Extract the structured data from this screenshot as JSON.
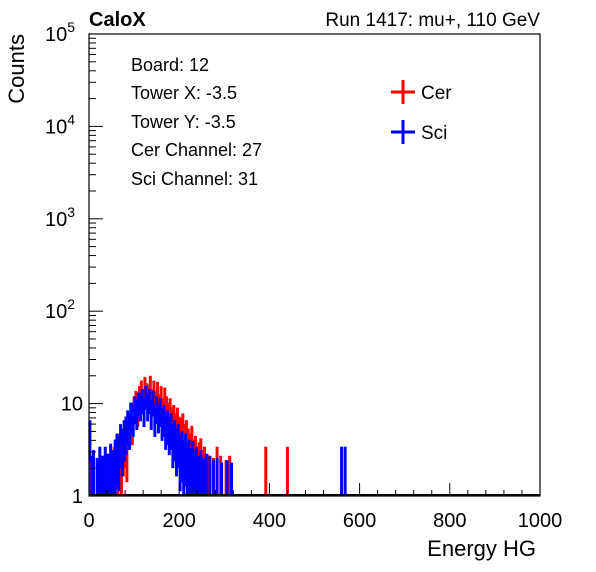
{
  "chart_data": {
    "type": "histogram",
    "header_left": "CaloX",
    "header_right": "Run 1417: mu+, 110 GeV",
    "xlabel": "Energy HG",
    "ylabel": "Counts",
    "xlim": [
      0,
      1000
    ],
    "ylim": [
      1,
      100000
    ],
    "yscale": "log",
    "grid": false,
    "x_ticks": [
      0,
      200,
      400,
      600,
      800,
      1000
    ],
    "x_tick_labels": [
      "0",
      "200",
      "400",
      "600",
      "800",
      "1000"
    ],
    "y_tick_labels": [
      {
        "value": 1,
        "base": "1",
        "exp": ""
      },
      {
        "value": 10,
        "base": "10",
        "exp": ""
      },
      {
        "value": 100,
        "base": "10",
        "exp": "2"
      },
      {
        "value": 1000,
        "base": "10",
        "exp": "3"
      },
      {
        "value": 10000,
        "base": "10",
        "exp": "4"
      },
      {
        "value": 100000,
        "base": "10",
        "exp": "5"
      }
    ],
    "info_box": [
      "Board: 12",
      "Tower X: -3.5",
      "Tower Y: -3.5",
      "Cer Channel: 27",
      "Sci Channel: 31"
    ],
    "legend_position": "top-right",
    "series": [
      {
        "name": "Cer",
        "color": "#ff0000",
        "bin_width": 2,
        "points": [
          [
            4,
            1.5
          ],
          [
            10,
            1.3
          ],
          [
            28,
            1.5
          ],
          [
            40,
            1.6
          ],
          [
            48,
            1.4
          ],
          [
            56,
            2.0
          ],
          [
            60,
            2.5
          ],
          [
            64,
            1.8
          ],
          [
            68,
            3.0
          ],
          [
            72,
            2.4
          ],
          [
            76,
            3.5
          ],
          [
            80,
            4.0
          ],
          [
            84,
            3.2
          ],
          [
            88,
            5.5
          ],
          [
            92,
            7.5
          ],
          [
            96,
            6.0
          ],
          [
            100,
            9.0
          ],
          [
            104,
            10.5
          ],
          [
            108,
            8.5
          ],
          [
            112,
            12.0
          ],
          [
            116,
            14.0
          ],
          [
            120,
            11.0
          ],
          [
            124,
            15.5
          ],
          [
            128,
            13.0
          ],
          [
            132,
            12.5
          ],
          [
            136,
            16.0
          ],
          [
            140,
            11.0
          ],
          [
            144,
            14.0
          ],
          [
            148,
            10.5
          ],
          [
            152,
            13.5
          ],
          [
            156,
            9.5
          ],
          [
            160,
            12.0
          ],
          [
            164,
            8.5
          ],
          [
            168,
            11.5
          ],
          [
            172,
            9.0
          ],
          [
            176,
            7.5
          ],
          [
            180,
            8.5
          ],
          [
            184,
            6.5
          ],
          [
            188,
            7.0
          ],
          [
            192,
            5.5
          ],
          [
            196,
            6.5
          ],
          [
            200,
            5.0
          ],
          [
            204,
            4.8
          ],
          [
            208,
            5.5
          ],
          [
            212,
            4.0
          ],
          [
            216,
            4.5
          ],
          [
            220,
            3.5
          ],
          [
            224,
            3.0
          ],
          [
            228,
            3.8
          ],
          [
            232,
            2.5
          ],
          [
            236,
            2.8
          ],
          [
            240,
            2.0
          ],
          [
            244,
            2.3
          ],
          [
            248,
            2.6
          ],
          [
            252,
            1.8
          ],
          [
            256,
            2.0
          ],
          [
            262,
            1.6
          ],
          [
            268,
            1.5
          ],
          [
            276,
            1.4
          ],
          [
            284,
            2.0
          ],
          [
            292,
            1.5
          ],
          [
            304,
            1.3
          ],
          [
            312,
            1.5
          ],
          [
            392,
            2.0
          ],
          [
            440,
            2.0
          ]
        ]
      },
      {
        "name": "Sci",
        "color": "#0000ff",
        "bin_width": 2,
        "points": [
          [
            2,
            4.5
          ],
          [
            6,
            1.5
          ],
          [
            10,
            1.8
          ],
          [
            18,
            1.4
          ],
          [
            24,
            2.0
          ],
          [
            30,
            1.5
          ],
          [
            36,
            2.0
          ],
          [
            42,
            1.6
          ],
          [
            48,
            2.2
          ],
          [
            54,
            1.8
          ],
          [
            58,
            2.5
          ],
          [
            62,
            3.0
          ],
          [
            66,
            2.8
          ],
          [
            70,
            4.0
          ],
          [
            74,
            3.5
          ],
          [
            78,
            4.5
          ],
          [
            82,
            5.0
          ],
          [
            86,
            6.0
          ],
          [
            90,
            5.5
          ],
          [
            94,
            7.5
          ],
          [
            98,
            7.0
          ],
          [
            102,
            9.0
          ],
          [
            106,
            8.0
          ],
          [
            110,
            10.0
          ],
          [
            114,
            9.5
          ],
          [
            118,
            11.0
          ],
          [
            122,
            8.5
          ],
          [
            126,
            12.0
          ],
          [
            130,
            9.5
          ],
          [
            134,
            11.0
          ],
          [
            138,
            8.0
          ],
          [
            142,
            10.5
          ],
          [
            146,
            7.0
          ],
          [
            150,
            9.0
          ],
          [
            154,
            7.5
          ],
          [
            158,
            8.5
          ],
          [
            162,
            6.5
          ],
          [
            166,
            7.0
          ],
          [
            170,
            5.5
          ],
          [
            174,
            6.0
          ],
          [
            178,
            5.0
          ],
          [
            182,
            5.5
          ],
          [
            186,
            4.0
          ],
          [
            190,
            4.5
          ],
          [
            194,
            3.5
          ],
          [
            198,
            4.0
          ],
          [
            202,
            2.8
          ],
          [
            206,
            3.2
          ],
          [
            210,
            2.5
          ],
          [
            214,
            3.0
          ],
          [
            218,
            2.2
          ],
          [
            222,
            2.5
          ],
          [
            226,
            2.0
          ],
          [
            230,
            2.4
          ],
          [
            234,
            1.7
          ],
          [
            238,
            2.0
          ],
          [
            242,
            1.5
          ],
          [
            248,
            1.8
          ],
          [
            254,
            1.4
          ],
          [
            260,
            1.6
          ],
          [
            268,
            1.5
          ],
          [
            276,
            1.3
          ],
          [
            284,
            1.4
          ],
          [
            294,
            1.2
          ],
          [
            306,
            1.3
          ],
          [
            316,
            1.2
          ],
          [
            560,
            2.0
          ],
          [
            568,
            2.0
          ]
        ]
      }
    ]
  }
}
